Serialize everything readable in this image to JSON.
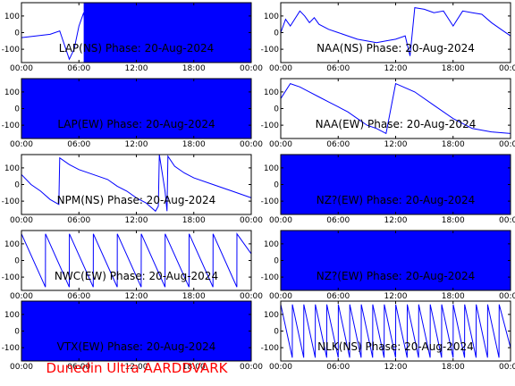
{
  "footer": {
    "credit": "Dunedin Ultra AARDDVARK"
  },
  "colors": {
    "trace": "#0000ff",
    "axis": "#000000",
    "footer": "#ff0000",
    "background": "#ffffff"
  },
  "chart_data": [
    {
      "type": "line",
      "title": "LAP(NS) Phase: 20-Aug-2024",
      "x_ticks": [
        "00:00",
        "06:00",
        "12:00",
        "18:00",
        "00:00"
      ],
      "y_ticks": [
        "100",
        "0",
        "-100"
      ],
      "ylim": [
        -180,
        180
      ],
      "xlim_hours": [
        0,
        24
      ],
      "grid": false,
      "series": [
        {
          "x": [
            0,
            1.5,
            3,
            4,
            5,
            5.5,
            6,
            6.5,
            7,
            24
          ],
          "y": [
            -30,
            -20,
            -10,
            10,
            -160,
            -100,
            40,
            120,
            -150,
            150
          ],
          "fill_from_hour": 6.5
        }
      ]
    },
    {
      "type": "line",
      "title": "NAA(NS) Phase: 20-Aug-2024",
      "x_ticks": [
        "00:00",
        "06:00",
        "12:00",
        "18:00",
        "00:00"
      ],
      "y_ticks": [
        "100",
        "0",
        "-100"
      ],
      "ylim": [
        -180,
        180
      ],
      "xlim_hours": [
        0,
        24
      ],
      "grid": false,
      "series": [
        {
          "x": [
            0,
            0.5,
            1,
            2,
            2.5,
            3,
            3.5,
            4,
            5,
            6,
            8,
            10,
            11,
            12,
            13,
            13.5,
            14,
            15,
            16,
            17,
            18,
            19,
            20,
            21,
            22,
            23,
            24
          ],
          "y": [
            0,
            80,
            40,
            130,
            100,
            60,
            90,
            50,
            20,
            0,
            -40,
            -60,
            -50,
            -40,
            -20,
            -140,
            150,
            140,
            120,
            130,
            40,
            130,
            120,
            110,
            60,
            20,
            -20
          ]
        }
      ]
    },
    {
      "type": "line",
      "title": "LAP(EW) Phase: 20-Aug-2024",
      "x_ticks": [
        "00:00",
        "06:00",
        "12:00",
        "18:00",
        "00:00"
      ],
      "y_ticks": [
        "100",
        "0",
        "-100"
      ],
      "ylim": [
        -180,
        180
      ],
      "xlim_hours": [
        0,
        24
      ],
      "grid": false,
      "series": [
        {
          "x": [
            0,
            24
          ],
          "y": [
            -150,
            150
          ],
          "fill_from_hour": 0
        }
      ]
    },
    {
      "type": "line",
      "title": "NAA(EW) Phase: 20-Aug-2024",
      "x_ticks": [
        "00:00",
        "06:00",
        "12:00",
        "18:00",
        "00:00"
      ],
      "y_ticks": [
        "100",
        "0",
        "-100"
      ],
      "ylim": [
        -180,
        180
      ],
      "xlim_hours": [
        0,
        24
      ],
      "grid": false,
      "series": [
        {
          "x": [
            0,
            1,
            2,
            3,
            4,
            5,
            6,
            7,
            8,
            9,
            10,
            11,
            12,
            14,
            16,
            18,
            20,
            22,
            24
          ],
          "y": [
            60,
            150,
            130,
            100,
            70,
            40,
            10,
            -20,
            -60,
            -100,
            -120,
            -150,
            150,
            100,
            20,
            -60,
            -120,
            -140,
            -150
          ]
        }
      ]
    },
    {
      "type": "line",
      "title": "NPM(NS) Phase: 20-Aug-2024",
      "x_ticks": [
        "00:00",
        "06:00",
        "12:00",
        "18:00",
        "00:00"
      ],
      "y_ticks": [
        "100",
        "0",
        "-100"
      ],
      "ylim": [
        -180,
        180
      ],
      "xlim_hours": [
        0,
        24
      ],
      "grid": false,
      "series": [
        {
          "x": [
            0,
            1,
            2,
            3,
            3.9,
            4,
            5,
            6,
            8,
            9,
            10,
            11,
            12,
            13,
            14,
            14.3,
            14.4,
            15,
            15.2,
            15.3,
            16,
            17,
            18,
            20,
            22,
            24
          ],
          "y": [
            60,
            0,
            -40,
            -90,
            -120,
            160,
            120,
            90,
            50,
            30,
            -10,
            -40,
            -80,
            -110,
            -160,
            -130,
            180,
            -40,
            -160,
            170,
            110,
            70,
            40,
            0,
            -40,
            -80
          ]
        }
      ]
    },
    {
      "type": "line",
      "title": "NZ?(EW) Phase: 20-Aug-2024",
      "x_ticks": [
        "00:00",
        "06:00",
        "12:00",
        "18:00",
        "00:00"
      ],
      "y_ticks": [
        "100",
        "0",
        "-100"
      ],
      "ylim": [
        -180,
        180
      ],
      "xlim_hours": [
        0,
        24
      ],
      "grid": false,
      "series": [
        {
          "x": [
            0,
            24
          ],
          "y": [
            -150,
            150
          ],
          "fill_from_hour": 0
        }
      ]
    },
    {
      "type": "line",
      "title": "NWC(EW) Phase: 20-Aug-2024",
      "x_ticks": [
        "00:00",
        "06:00",
        "12:00",
        "18:00",
        "00:00"
      ],
      "y_ticks": [
        "100",
        "0",
        "-100"
      ],
      "ylim": [
        -180,
        180
      ],
      "xlim_hours": [
        0,
        24
      ],
      "grid": false,
      "series": [
        {
          "x": [
            0,
            2.5,
            2.51,
            5,
            5.01,
            7.5,
            7.51,
            10,
            10.01,
            12.5,
            12.51,
            15,
            15.01,
            17.5,
            17.51,
            20,
            20.01,
            22.5,
            22.51,
            24
          ],
          "y": [
            160,
            -160,
            160,
            -160,
            160,
            -160,
            160,
            -160,
            160,
            -160,
            160,
            -160,
            160,
            -160,
            160,
            -160,
            160,
            -160,
            160,
            40
          ]
        }
      ]
    },
    {
      "type": "line",
      "title": "NZ?(EW) Phase: 20-Aug-2024",
      "x_ticks": [
        "00:00",
        "06:00",
        "12:00",
        "18:00",
        "00:00"
      ],
      "y_ticks": [
        "100",
        "0",
        "-100"
      ],
      "ylim": [
        -180,
        180
      ],
      "xlim_hours": [
        0,
        24
      ],
      "grid": false,
      "series": [
        {
          "x": [
            0,
            24
          ],
          "y": [
            -150,
            150
          ],
          "fill_from_hour": 0
        }
      ]
    },
    {
      "type": "line",
      "title": "VTX(EW) Phase: 20-Aug-2024",
      "x_ticks": [
        "00:00",
        "06:00",
        "12:00",
        "18:00",
        "00:00"
      ],
      "y_ticks": [
        "100",
        "0",
        "-100"
      ],
      "ylim": [
        -180,
        180
      ],
      "xlim_hours": [
        0,
        24
      ],
      "grid": false,
      "series": [
        {
          "x": [
            0,
            24
          ],
          "y": [
            -150,
            150
          ],
          "fill_from_hour": 0
        }
      ]
    },
    {
      "type": "line",
      "title": "NLK(NS) Phase: 20-Aug-2024",
      "x_ticks": [
        "00:00",
        "06:00",
        "12:00",
        "18:00",
        "00:00"
      ],
      "y_ticks": [
        "100",
        "0",
        "-100"
      ],
      "ylim": [
        -180,
        180
      ],
      "xlim_hours": [
        0,
        24
      ],
      "grid": false,
      "series": [
        {
          "x": [
            0,
            1.2,
            1.21,
            2.4,
            2.41,
            3.6,
            3.61,
            4.8,
            4.81,
            6,
            6.01,
            7.2,
            7.21,
            8.4,
            8.41,
            9.6,
            9.61,
            10.8,
            10.81,
            12,
            12.01,
            13.2,
            13.21,
            14.4,
            14.41,
            15.6,
            15.61,
            16.8,
            16.81,
            18,
            18.01,
            19.2,
            19.21,
            20.4,
            20.41,
            21.6,
            21.61,
            22.8,
            22.81,
            24
          ],
          "y": [
            160,
            -160,
            160,
            -160,
            160,
            -160,
            160,
            -160,
            160,
            -160,
            160,
            -160,
            160,
            -160,
            160,
            -160,
            160,
            -160,
            160,
            -160,
            160,
            -160,
            160,
            -160,
            160,
            -160,
            160,
            -160,
            160,
            -160,
            160,
            -160,
            160,
            -160,
            160,
            -160,
            160,
            -160,
            160,
            -100
          ]
        }
      ]
    }
  ]
}
